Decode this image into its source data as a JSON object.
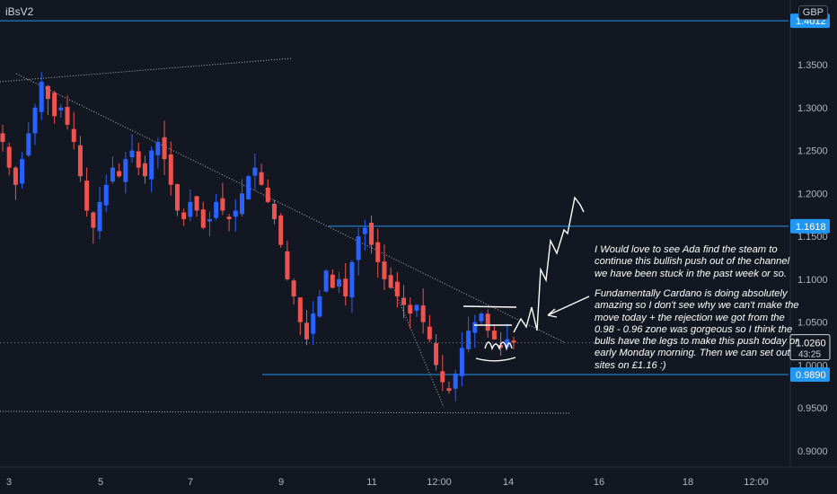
{
  "symbol": "iBsV2",
  "currency": "GBP",
  "chart_data": {
    "type": "candlestick",
    "ylim": [
      0.87,
      1.42
    ],
    "y_ticks": [
      "1.3500",
      "1.3000",
      "1.2500",
      "1.2000",
      "1.1500",
      "1.1000",
      "1.0500",
      "1.0000",
      "0.9500",
      "0.9000"
    ],
    "x_ticks": [
      "3",
      "5",
      "7",
      "9",
      "11",
      "12:00",
      "14",
      "16",
      "18",
      "12:00"
    ],
    "price_levels": [
      {
        "label": "1.4012",
        "value": 1.4012
      },
      {
        "label": "1.1618",
        "value": 1.1618
      },
      {
        "label": "0.9890",
        "value": 0.989
      }
    ],
    "last_price": {
      "label": "1.0260",
      "value": 1.026,
      "countdown": "43:25"
    },
    "closes": [
      1.26,
      1.23,
      1.21,
      1.24,
      1.27,
      1.3,
      1.33,
      1.31,
      1.29,
      1.3,
      1.28,
      1.26,
      1.22,
      1.18,
      1.16,
      1.19,
      1.21,
      1.23,
      1.22,
      1.24,
      1.25,
      1.23,
      1.22,
      1.25,
      1.26,
      1.24,
      1.21,
      1.18,
      1.17,
      1.19,
      1.18,
      1.16,
      1.17,
      1.19,
      1.18,
      1.17,
      1.18,
      1.2,
      1.22,
      1.23,
      1.21,
      1.19,
      1.17,
      1.14,
      1.1,
      1.08,
      1.05,
      1.03,
      1.06,
      1.08,
      1.11,
      1.09,
      1.1,
      1.08,
      1.12,
      1.15,
      1.16,
      1.14,
      1.12,
      1.1,
      1.09,
      1.08,
      1.07,
      1.06,
      1.07,
      1.05,
      1.03,
      1.0,
      0.98,
      0.97,
      0.99,
      1.02,
      1.04,
      1.05,
      1.06,
      1.04,
      1.03,
      1.02,
      1.03,
      1.026
    ],
    "colors": {
      "up": "#2962ff",
      "down": "#ef5350",
      "level": "#2196f3",
      "grid": "#1e222d"
    }
  },
  "annotation": {
    "paragraph1": "I Would love to see Ada find the steam to continue this bullish push out of the channel we have been stuck in the past week or so.",
    "paragraph2": "Fundamentally Cardano is doing absolutely amazing so I don't see why we can't make the move today + the rejection we got from the 0.98 - 0.96 zone was gorgeous so I think the bulls have the legs to make this push today or early Monday morning. Then we can set out sites on £1.16 :)"
  }
}
